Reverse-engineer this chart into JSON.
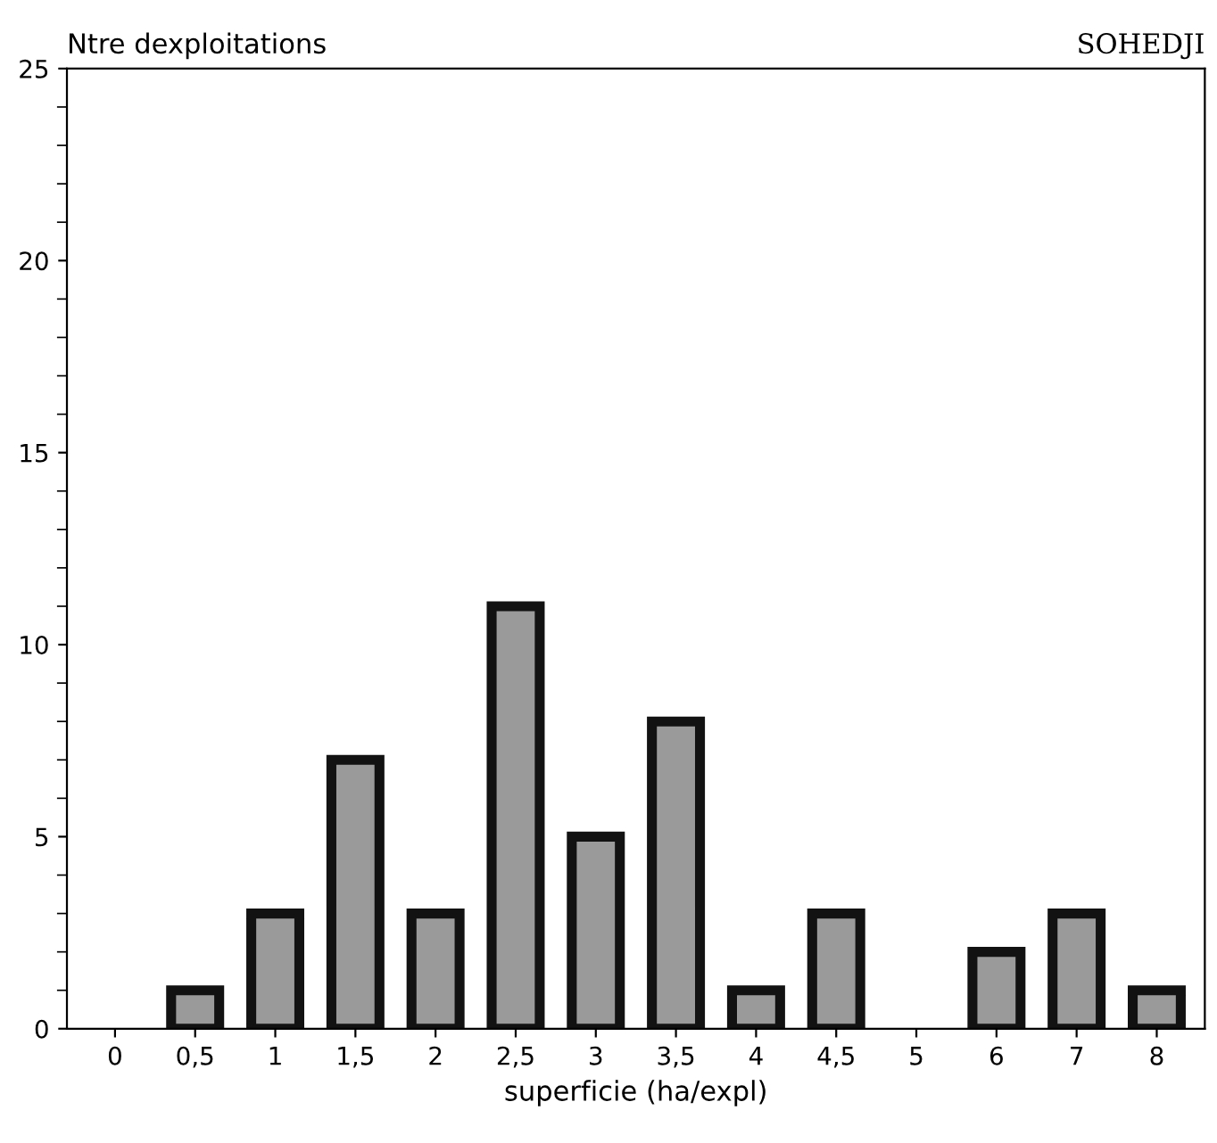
{
  "chart_data": {
    "type": "bar",
    "title": "SOHEDJI",
    "ylabel": "Ntre dexploitations",
    "xlabel": "superficie (ha/expl)",
    "categories": [
      "0",
      "0,5",
      "1",
      "1,5",
      "2",
      "2,5",
      "3",
      "3,5",
      "4",
      "4,5",
      "5",
      "6",
      "7",
      "8"
    ],
    "values": [
      0,
      1,
      3,
      7,
      3,
      11,
      5,
      8,
      1,
      3,
      0,
      2,
      3,
      1
    ],
    "color": "#9a9a9a",
    "ylim": [
      0,
      25
    ],
    "yticks": [
      0,
      5,
      10,
      15,
      20,
      25
    ],
    "grid": false,
    "legend": false
  }
}
